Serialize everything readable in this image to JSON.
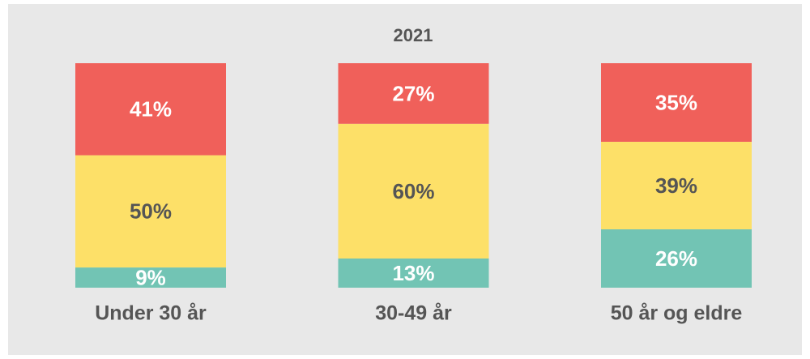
{
  "chart_data": {
    "type": "stacked_bar",
    "title": "2021",
    "categories": [
      "Under 30 år",
      "30-49 år",
      "50 år og eldre"
    ],
    "series": [
      {
        "color": "#72c4b4",
        "values": [
          9,
          13,
          26
        ],
        "value_labels": [
          "9%",
          "13%",
          "26%"
        ],
        "label_color": "#ffffff"
      },
      {
        "color": "#fde068",
        "values": [
          50,
          60,
          39
        ],
        "value_labels": [
          "50%",
          "60%",
          "39%"
        ],
        "label_color": "#555555"
      },
      {
        "color": "#f0605a",
        "values": [
          41,
          27,
          35
        ],
        "value_labels": [
          "41%",
          "27%",
          "35%"
        ],
        "label_color": "#ffffff"
      }
    ],
    "ylim": [
      0,
      100
    ]
  }
}
